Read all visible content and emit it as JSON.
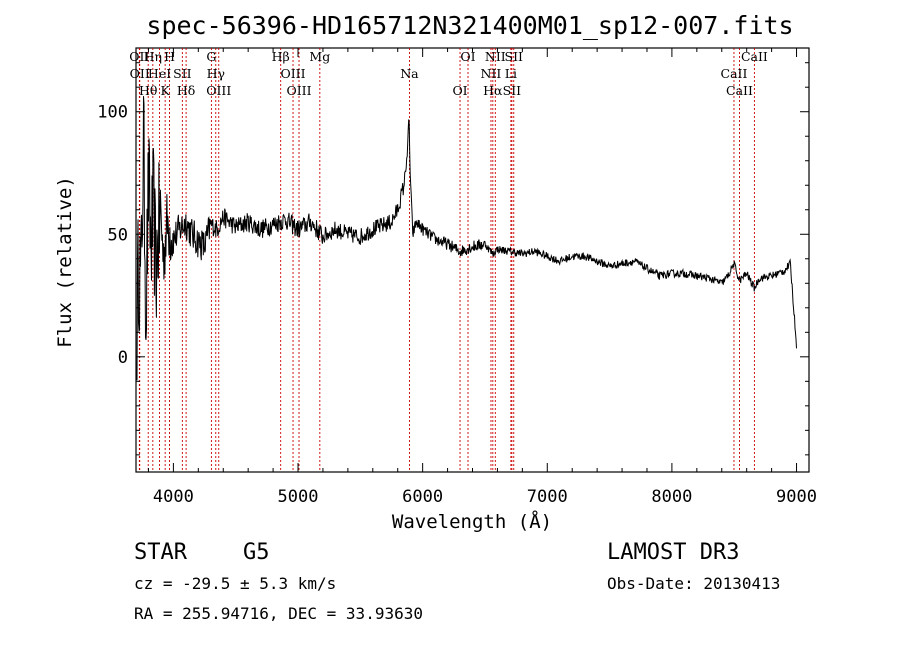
{
  "chart_data": {
    "type": "line",
    "title": "spec-56396-HD165712N321400M01_sp12-007.fits",
    "xlabel": "Wavelength (Å)",
    "ylabel": "Flux (relative)",
    "xlim": [
      3700,
      9100
    ],
    "ylim": [
      -47,
      126
    ],
    "xticks": [
      4000,
      5000,
      6000,
      7000,
      8000,
      9000
    ],
    "yticks": [
      0,
      50,
      100
    ],
    "series": [
      {
        "name": "flux",
        "x": [
          3700,
          3720,
          3740,
          3760,
          3780,
          3800,
          3820,
          3840,
          3860,
          3880,
          3900,
          3920,
          3950,
          3980,
          4000,
          4050,
          4100,
          4150,
          4200,
          4250,
          4300,
          4350,
          4400,
          4450,
          4500,
          4600,
          4700,
          4800,
          4900,
          5000,
          5100,
          5200,
          5300,
          5400,
          5500,
          5600,
          5700,
          5750,
          5800,
          5850,
          5880,
          5890,
          5900,
          5920,
          5950,
          6000,
          6100,
          6200,
          6300,
          6400,
          6500,
          6563,
          6600,
          6700,
          6800,
          6900,
          7000,
          7100,
          7200,
          7300,
          7400,
          7500,
          7600,
          7700,
          7800,
          7900,
          8000,
          8100,
          8200,
          8300,
          8400,
          8450,
          8498,
          8542,
          8600,
          8662,
          8700,
          8800,
          8900,
          8950,
          9000
        ],
        "y": [
          -5,
          40,
          30,
          90,
          20,
          70,
          45,
          60,
          35,
          50,
          58,
          40,
          55,
          50,
          48,
          52,
          55,
          50,
          47,
          45,
          54,
          52,
          57,
          55,
          53,
          55,
          52,
          54,
          56,
          52,
          55,
          49,
          52,
          50,
          49,
          52,
          54,
          55,
          60,
          70,
          85,
          99,
          75,
          50,
          55,
          52,
          48,
          46,
          43,
          45,
          46,
          42,
          44,
          43,
          42,
          43,
          41,
          39,
          41,
          41,
          39,
          37,
          38,
          39,
          36,
          33,
          34,
          34,
          33,
          32,
          30,
          33,
          38,
          31,
          34,
          28,
          32,
          33,
          35,
          38,
          5
        ]
      }
    ],
    "annotations": [
      {
        "label": "OII",
        "wavelength": 3727
      },
      {
        "label": "OII",
        "wavelength": 3730
      },
      {
        "label": "Hθ",
        "wavelength": 3798
      },
      {
        "label": "Hη",
        "wavelength": 3835
      },
      {
        "label": "HeI",
        "wavelength": 3889
      },
      {
        "label": "K",
        "wavelength": 3934
      },
      {
        "label": "H",
        "wavelength": 3969
      },
      {
        "label": "SII",
        "wavelength": 4072
      },
      {
        "label": "Hδ",
        "wavelength": 4102
      },
      {
        "label": "G",
        "wavelength": 4305
      },
      {
        "label": "Hγ",
        "wavelength": 4340
      },
      {
        "label": "OIII",
        "wavelength": 4364
      },
      {
        "label": "Hβ",
        "wavelength": 4861
      },
      {
        "label": "OIII",
        "wavelength": 4960
      },
      {
        "label": "OIII",
        "wavelength": 5008
      },
      {
        "label": "Mg",
        "wavelength": 5175
      },
      {
        "label": "Na",
        "wavelength": 5894
      },
      {
        "label": "OI",
        "wavelength": 6300
      },
      {
        "label": "OI",
        "wavelength": 6364
      },
      {
        "label": "NII",
        "wavelength": 6548
      },
      {
        "label": "Hα",
        "wavelength": 6563
      },
      {
        "label": "NII",
        "wavelength": 6583
      },
      {
        "label": "Li",
        "wavelength": 6708
      },
      {
        "label": "SII",
        "wavelength": 6716
      },
      {
        "label": "SII",
        "wavelength": 6731
      },
      {
        "label": "CaII",
        "wavelength": 8498
      },
      {
        "label": "CaII",
        "wavelength": 8542
      },
      {
        "label": "CaII",
        "wavelength": 8662
      }
    ]
  },
  "info": {
    "object_class": "STAR",
    "subclass": "G5",
    "survey": "LAMOST DR3",
    "cz": "cz = -29.5 ± 5.3 km/s",
    "obs_date": "Obs-Date: 20130413",
    "coords": "RA = 255.94716, DEC =  33.93630"
  },
  "colors": {
    "line_marker": "#cc0000",
    "spectrum": "#000000",
    "axes": "#000000"
  }
}
